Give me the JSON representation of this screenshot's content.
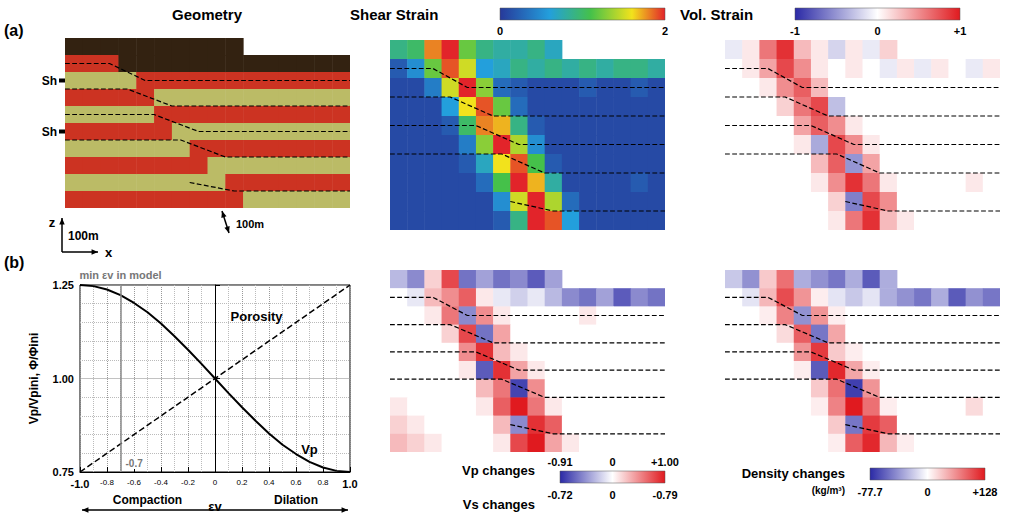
{
  "figure": {
    "panel_labels": [
      "(a)",
      "(b)"
    ],
    "horizons": [
      [
        [
          0,
          1.5
        ],
        [
          2.5,
          1.5
        ],
        [
          4.5,
          2.5
        ],
        [
          16,
          2.5
        ]
      ],
      [
        [
          0,
          3
        ],
        [
          3.5,
          3
        ],
        [
          6,
          4
        ],
        [
          16,
          4
        ]
      ],
      [
        [
          0,
          4.5
        ],
        [
          5,
          4.5
        ],
        [
          7.5,
          5.5
        ],
        [
          16,
          5.5
        ]
      ],
      [
        [
          0,
          6
        ],
        [
          6.5,
          6
        ],
        [
          9,
          7
        ],
        [
          16,
          7
        ]
      ],
      [
        [
          7,
          8.5
        ],
        [
          9.5,
          9
        ],
        [
          16,
          9
        ]
      ]
    ]
  },
  "chart_data": [
    {
      "type": "heatmap",
      "title": "Geometry",
      "tick_labels": false,
      "colors": [
        [
          "#321",
          "#321",
          "#321",
          "#321",
          "#321",
          "#321",
          "#321",
          "#321",
          "#321",
          "#321",
          null,
          null,
          null,
          null,
          null,
          null
        ],
        [
          "#c32",
          "#c32",
          "#c32",
          "#321",
          "#321",
          "#321",
          "#321",
          "#321",
          "#321",
          "#321",
          "#321",
          "#321",
          "#321",
          "#321",
          "#321",
          "#321"
        ],
        [
          "#bb6",
          "#bb6",
          "#bb6",
          "#bb6",
          "#c32",
          "#c32",
          "#c32",
          "#c32",
          "#c32",
          "#c32",
          "#c32",
          "#c32",
          "#c32",
          "#c32",
          "#c32",
          "#c32"
        ],
        [
          "#c32",
          "#c32",
          "#c32",
          "#c32",
          "#c32",
          "#bb6",
          "#bb6",
          "#bb6",
          "#bb6",
          "#bb6",
          "#bb6",
          "#bb6",
          "#bb6",
          "#bb6",
          "#bb6",
          "#bb6"
        ],
        [
          "#bb6",
          "#bb6",
          "#bb6",
          "#bb6",
          "#bb6",
          "#c32",
          "#c32",
          "#c32",
          "#c32",
          "#c32",
          "#c32",
          "#c32",
          "#c32",
          "#c32",
          "#c32",
          "#c32"
        ],
        [
          "#c32",
          "#c32",
          "#c32",
          "#c32",
          "#c32",
          "#c32",
          "#bb6",
          "#bb6",
          "#bb6",
          "#bb6",
          "#bb6",
          "#bb6",
          "#bb6",
          "#bb6",
          "#bb6",
          "#bb6"
        ],
        [
          "#bb6",
          "#bb6",
          "#bb6",
          "#bb6",
          "#bb6",
          "#bb6",
          "#bb6",
          "#c32",
          "#c32",
          "#c32",
          "#c32",
          "#c32",
          "#c32",
          "#c32",
          "#c32",
          "#c32"
        ],
        [
          "#c32",
          "#c32",
          "#c32",
          "#c32",
          "#c32",
          "#c32",
          "#c32",
          "#c32",
          "#bb6",
          "#bb6",
          "#bb6",
          "#bb6",
          "#bb6",
          "#bb6",
          "#bb6",
          "#bb6"
        ],
        [
          "#bb6",
          "#bb6",
          "#bb6",
          "#bb6",
          "#bb6",
          "#bb6",
          "#bb6",
          "#bb6",
          "#bb6",
          "#c32",
          "#c32",
          "#c32",
          "#c32",
          "#c32",
          "#c32",
          "#c32"
        ],
        [
          "#c32",
          "#c32",
          "#c32",
          "#c32",
          "#c32",
          "#c32",
          "#c32",
          "#c32",
          "#c32",
          "#c32",
          "#bb6",
          "#bb6",
          "#bb6",
          "#bb6",
          "#bb6",
          "#bb6"
        ]
      ],
      "annotations": [
        {
          "text": "Sh"
        },
        {
          "text": "Sh"
        },
        {
          "text": "100m"
        },
        {
          "text": "100m"
        },
        {
          "text": "z"
        },
        {
          "text": "x"
        }
      ]
    },
    {
      "type": "heatmap",
      "title": "Shear Strain",
      "tick_labels": false,
      "colorbar": {
        "range": [
          0,
          2
        ],
        "ticks": [
          0,
          2
        ]
      },
      "cells": [
        [
          0.9,
          1.0,
          1.8,
          2.0,
          1.2,
          0.9,
          0.8,
          0.8,
          0.9,
          0.7,
          null,
          null,
          null,
          null,
          null,
          null
        ],
        [
          0.2,
          0.5,
          1.2,
          1.9,
          1.5,
          0.6,
          0.7,
          0.9,
          0.8,
          0.9,
          0.8,
          0.9,
          0.8,
          0.9,
          0.9,
          0.8
        ],
        [
          0.1,
          0.1,
          0.4,
          1.5,
          2.0,
          1.3,
          0.3,
          0.2,
          0.1,
          0.1,
          0.1,
          0.2,
          0.1,
          0.1,
          0.2,
          0.1
        ],
        [
          0.1,
          0.1,
          0.1,
          0.6,
          1.6,
          1.9,
          1.2,
          0.3,
          0.1,
          0.1,
          0.1,
          0.1,
          0.1,
          0.1,
          0.1,
          0.1
        ],
        [
          0.1,
          0.1,
          0.1,
          0.2,
          1.0,
          1.8,
          1.7,
          0.9,
          0.2,
          0.1,
          0.1,
          0.1,
          0.1,
          0.1,
          0.1,
          0.1
        ],
        [
          0.1,
          0.1,
          0.1,
          0.1,
          0.4,
          1.3,
          2.0,
          1.4,
          0.5,
          0.1,
          0.1,
          0.1,
          0.1,
          0.1,
          0.1,
          0.1
        ],
        [
          0.1,
          0.1,
          0.1,
          0.1,
          0.2,
          0.7,
          1.6,
          1.9,
          1.1,
          0.2,
          0.1,
          0.1,
          0.1,
          0.1,
          0.1,
          0.1
        ],
        [
          0.1,
          0.1,
          0.1,
          0.1,
          0.1,
          0.3,
          1.1,
          2.0,
          1.7,
          0.8,
          0.1,
          0.1,
          0.1,
          0.1,
          0.2,
          0.1
        ],
        [
          0.1,
          0.1,
          0.1,
          0.1,
          0.1,
          0.1,
          0.5,
          1.5,
          2.0,
          1.4,
          0.3,
          0.1,
          0.1,
          0.1,
          0.1,
          0.1
        ],
        [
          0.1,
          0.1,
          0.1,
          0.1,
          0.1,
          0.1,
          0.2,
          0.9,
          2.0,
          1.9,
          0.6,
          0.1,
          0.1,
          0.1,
          0.1,
          0.1
        ]
      ]
    },
    {
      "type": "heatmap",
      "title": "Vol. Strain",
      "tick_labels": false,
      "colorbar": {
        "range": [
          -1,
          1
        ],
        "ticks": [
          -1,
          0,
          {
            "value": 1,
            "label": "+1"
          }
        ]
      },
      "cells": [
        [
          -0.1,
          0.1,
          0.6,
          0.9,
          0.3,
          0.1,
          -0.2,
          0.1,
          -0.1,
          0.2,
          null,
          null,
          null,
          null,
          null,
          null
        ],
        [
          0,
          0.1,
          0.4,
          0.8,
          0.5,
          0.1,
          0,
          0.1,
          0,
          -0.1,
          0.1,
          -0.1,
          0.1,
          0,
          -0.1,
          0.1
        ],
        [
          0,
          0,
          0.1,
          0.5,
          0.7,
          0.3,
          0,
          0,
          0,
          0,
          0,
          0,
          0,
          0,
          0,
          0
        ],
        [
          0,
          0,
          0,
          0.2,
          0.6,
          0.8,
          -0.3,
          0,
          0,
          0,
          0,
          0,
          0,
          0,
          0,
          0
        ],
        [
          0,
          0,
          0,
          0,
          0.4,
          0.7,
          0.5,
          0.1,
          0,
          0,
          0,
          0,
          0,
          0,
          0,
          0
        ],
        [
          0,
          0,
          0,
          0,
          0.1,
          -0.4,
          0.8,
          0.5,
          0.1,
          0,
          0,
          0,
          0,
          0,
          0,
          0
        ],
        [
          0,
          0,
          0,
          0,
          0,
          0.3,
          0.7,
          -0.5,
          0.4,
          0,
          0,
          0,
          0,
          0,
          0,
          0
        ],
        [
          0,
          0,
          0,
          0,
          0,
          0.1,
          0.5,
          0.9,
          0.6,
          0.1,
          0,
          0,
          0,
          0,
          0.1,
          0
        ],
        [
          0,
          0,
          0,
          0,
          0,
          0,
          0.2,
          -0.6,
          0.8,
          0.5,
          0,
          0,
          0,
          0,
          0,
          0
        ],
        [
          0,
          0,
          0,
          0,
          0,
          0,
          0.1,
          0.6,
          0.9,
          0.3,
          0.1,
          0,
          0,
          0,
          0,
          0
        ]
      ]
    },
    {
      "type": "line",
      "xlabel": "εv",
      "ylabel": "Vp/Vpini, Φ/Φini",
      "xlim": [
        -1,
        1
      ],
      "ylim": [
        0.75,
        1.25
      ],
      "xticks": [
        {
          "value": -1,
          "label": "-1.0"
        },
        -0.8,
        -0.6,
        -0.4,
        -0.2,
        0,
        0.2,
        0.4,
        0.6,
        0.8,
        {
          "value": 1,
          "label": "1.0"
        }
      ],
      "yticks": [
        0.75,
        {
          "value": 1,
          "label": "1.00"
        },
        1.25
      ],
      "grid": true,
      "series": [
        {
          "name": "Vp",
          "color": "#000000",
          "line_style": "solid",
          "x": [
            -1,
            -0.9,
            -0.8,
            -0.7,
            -0.6,
            -0.5,
            -0.4,
            -0.3,
            -0.2,
            -0.1,
            0,
            0.1,
            0.2,
            0.3,
            0.4,
            0.5,
            0.6,
            0.7,
            0.8,
            0.9,
            1
          ],
          "values": [
            1.25,
            1.247,
            1.238,
            1.223,
            1.202,
            1.177,
            1.147,
            1.113,
            1.077,
            1.039,
            1.0,
            0.961,
            0.923,
            0.887,
            0.853,
            0.823,
            0.798,
            0.777,
            0.762,
            0.753,
            0.75
          ]
        },
        {
          "name": "Porosity",
          "color": "#000000",
          "line_style": "dashed",
          "x": [
            -1,
            1
          ],
          "values": [
            0.75,
            1.25
          ]
        }
      ],
      "annotations": [
        {
          "text": "min εv in model",
          "x": -0.7
        },
        {
          "text": "-0.7",
          "x": -0.7
        },
        {
          "text": "Compaction"
        },
        {
          "text": "Dilation"
        }
      ]
    },
    {
      "type": "heatmap",
      "tick_labels": false,
      "colorbar": {
        "title": "Vp changes",
        "range": [
          -0.91,
          1.0
        ],
        "ticks": [
          -0.91,
          0,
          {
            "value": 1.0,
            "label": "+1.00"
          }
        ]
      },
      "colorbar2": {
        "title": "Vs changes",
        "labels": [
          "-0.72",
          "0",
          "-0.79"
        ]
      },
      "cells": [
        [
          -0.3,
          -0.5,
          0.2,
          0.8,
          -0.6,
          -0.4,
          -0.6,
          -0.5,
          -0.7,
          -0.4,
          null,
          null,
          null,
          null,
          null,
          null
        ],
        [
          0,
          -0.1,
          0.3,
          0.5,
          0.7,
          0.1,
          -0.1,
          -0.2,
          -0.1,
          -0.3,
          -0.5,
          -0.6,
          -0.4,
          -0.7,
          -0.5,
          -0.6
        ],
        [
          0,
          0,
          0.1,
          0.6,
          -0.5,
          0.5,
          0.1,
          0,
          0,
          0,
          0,
          0.1,
          0,
          0,
          0,
          0
        ],
        [
          0,
          0,
          0,
          0.2,
          0.8,
          -0.6,
          0.4,
          0,
          0,
          0,
          0,
          0,
          0,
          0,
          0,
          0
        ],
        [
          0,
          0,
          0,
          0,
          0.5,
          0.9,
          0.3,
          0.1,
          0,
          0,
          0,
          0,
          0,
          0,
          0,
          0
        ],
        [
          0,
          0,
          0,
          0,
          0.1,
          -0.7,
          0.9,
          0.4,
          0.1,
          0,
          0,
          0,
          0,
          0,
          0,
          0
        ],
        [
          0,
          0,
          0,
          0,
          0,
          0.3,
          0.6,
          -0.8,
          0.5,
          0,
          0,
          0,
          0,
          0,
          0,
          0
        ],
        [
          0.1,
          0,
          0,
          0,
          0,
          0.1,
          0.7,
          1.0,
          0.6,
          0.1,
          0,
          0,
          0,
          0,
          0,
          0
        ],
        [
          0.2,
          0.1,
          0,
          0,
          0,
          0,
          0.3,
          -0.5,
          0.9,
          0.7,
          0,
          0,
          0,
          0,
          0,
          0
        ],
        [
          0.3,
          0.2,
          0.1,
          0,
          0,
          0,
          0.1,
          0.8,
          1.0,
          0.4,
          0.1,
          0,
          0,
          0,
          0,
          0
        ]
      ]
    },
    {
      "type": "heatmap",
      "tick_labels": false,
      "colorbar": {
        "title": "Density changes",
        "unit": "(kg/m³)",
        "range": [
          -77.7,
          128
        ],
        "ticks": [
          -77.7,
          0,
          {
            "value": 128,
            "label": "+128"
          }
        ]
      },
      "cells": [
        [
          -20,
          -40,
          30,
          80,
          -30,
          -40,
          -50,
          -30,
          -60,
          -30,
          null,
          null,
          null,
          null,
          null,
          null
        ],
        [
          0,
          -10,
          40,
          100,
          60,
          10,
          -10,
          -20,
          -10,
          -30,
          -40,
          -50,
          -30,
          -60,
          -40,
          -50
        ],
        [
          0,
          0,
          10,
          70,
          -40,
          60,
          10,
          0,
          0,
          0,
          0,
          0,
          0,
          0,
          0,
          0
        ],
        [
          0,
          0,
          0,
          20,
          90,
          -50,
          50,
          0,
          0,
          0,
          0,
          0,
          0,
          0,
          0,
          0
        ],
        [
          0,
          0,
          0,
          0,
          60,
          110,
          30,
          10,
          0,
          0,
          0,
          0,
          0,
          0,
          0,
          0
        ],
        [
          0,
          0,
          0,
          0,
          10,
          -60,
          120,
          50,
          10,
          0,
          0,
          0,
          0,
          0,
          0,
          0
        ],
        [
          0,
          0,
          0,
          0,
          0,
          30,
          80,
          -70,
          60,
          0,
          0,
          0,
          0,
          0,
          0,
          0
        ],
        [
          0,
          0,
          0,
          0,
          0,
          10,
          70,
          128,
          80,
          10,
          0,
          0,
          0,
          0,
          20,
          0
        ],
        [
          0,
          0,
          0,
          0,
          0,
          0,
          30,
          -50,
          110,
          90,
          0,
          0,
          0,
          0,
          0,
          0
        ],
        [
          0,
          0,
          0,
          0,
          0,
          0,
          10,
          90,
          120,
          40,
          10,
          0,
          0,
          0,
          0,
          0
        ]
      ]
    }
  ]
}
